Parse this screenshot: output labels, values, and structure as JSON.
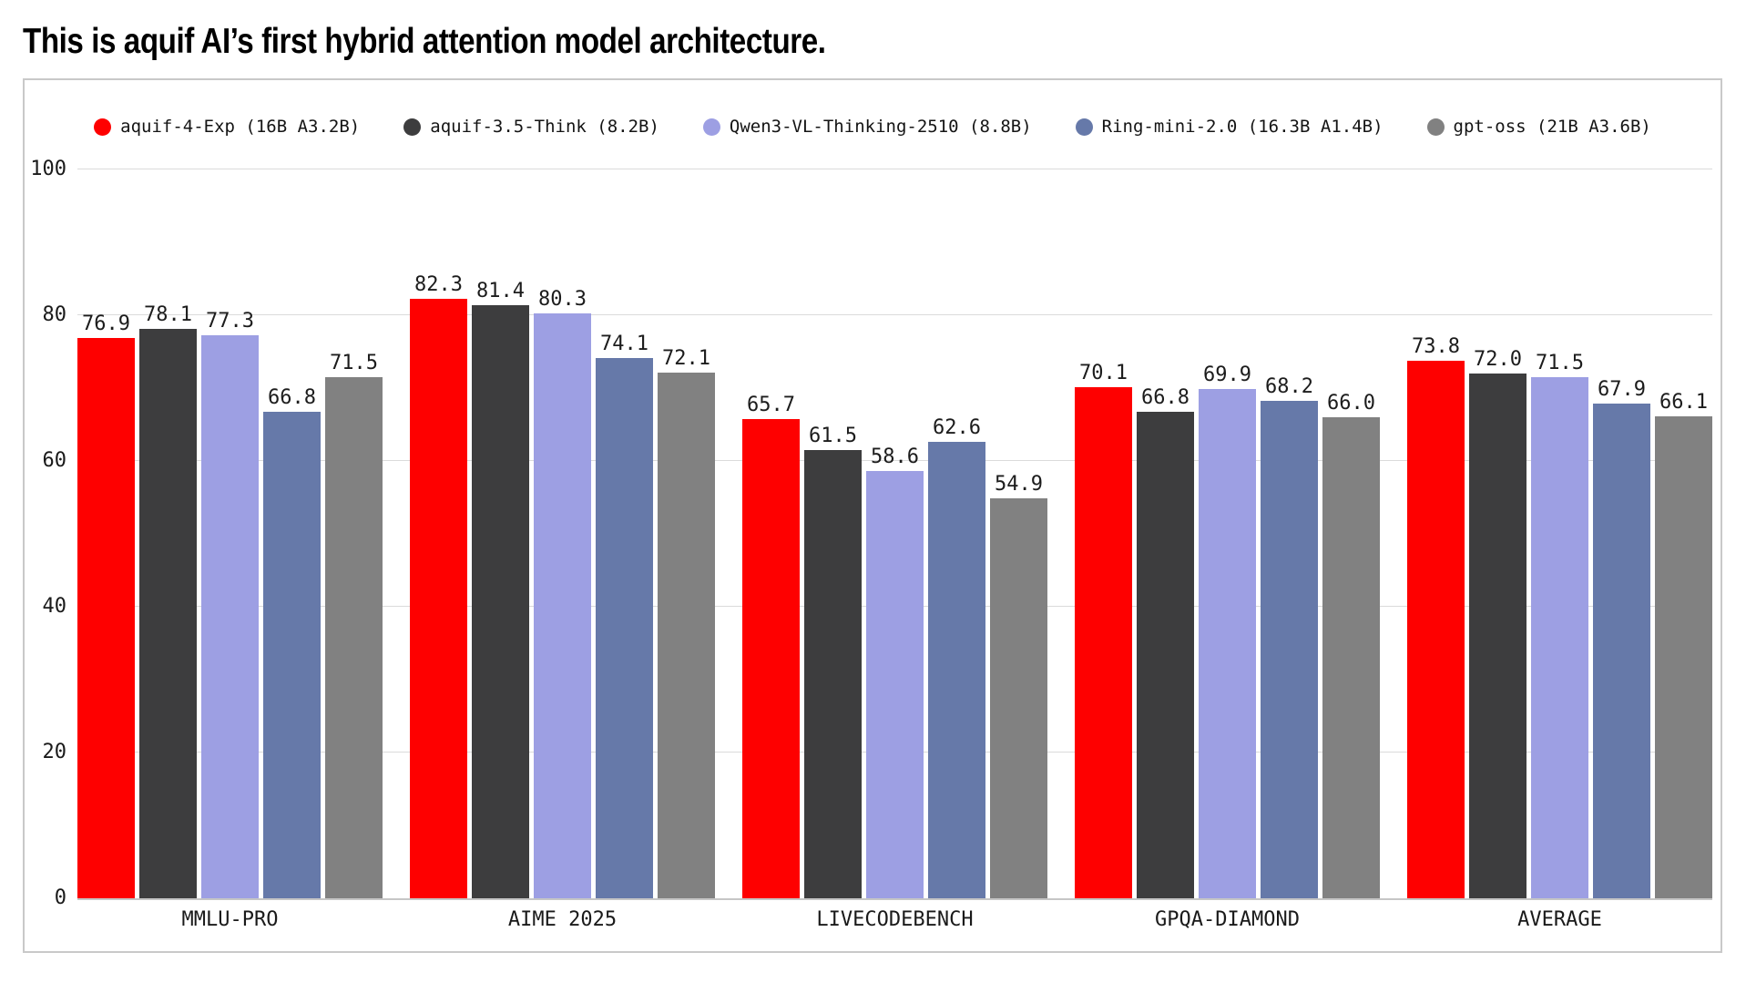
{
  "title": "This is aquif AI’s first hybrid attention model architecture.",
  "chart_data": {
    "type": "bar",
    "title": "This is aquif AI’s first hybrid attention model architecture.",
    "categories": [
      "MMLU-PRO",
      "AIME 2025",
      "LIVECODEBENCH",
      "GPQA-DIAMOND",
      "AVERAGE"
    ],
    "series": [
      {
        "name": "aquif-4-Exp (16B A3.2B)",
        "color": "#fe0000",
        "values": [
          76.9,
          82.3,
          65.7,
          70.1,
          73.8
        ]
      },
      {
        "name": "aquif-3.5-Think (8.2B)",
        "color": "#3d3d3e",
        "values": [
          78.1,
          81.4,
          61.5,
          66.8,
          72.0
        ]
      },
      {
        "name": "Qwen3-VL-Thinking-2510 (8.8B)",
        "color": "#9d9fe3",
        "values": [
          77.3,
          80.3,
          58.6,
          69.9,
          71.5
        ]
      },
      {
        "name": "Ring-mini-2.0 (16.3B A1.4B)",
        "color": "#6679a9",
        "values": [
          66.8,
          74.1,
          62.6,
          68.2,
          67.9
        ]
      },
      {
        "name": "gpt-oss (21B A3.6B)",
        "color": "#818181",
        "values": [
          71.5,
          72.1,
          54.9,
          66.0,
          66.1
        ]
      }
    ],
    "ylim": [
      0,
      100
    ],
    "yticks": [
      0,
      20,
      40,
      60,
      80,
      100
    ],
    "value_label_decimals": 1,
    "grid": true,
    "legend_position": "top",
    "xlabel": "",
    "ylabel": ""
  },
  "colors": {
    "background": "#ffffff",
    "card_border": "#c9c9c9",
    "gridline": "#dbdbdb",
    "axis_line": "#c6c6c6",
    "text": "#1a1a1a"
  }
}
